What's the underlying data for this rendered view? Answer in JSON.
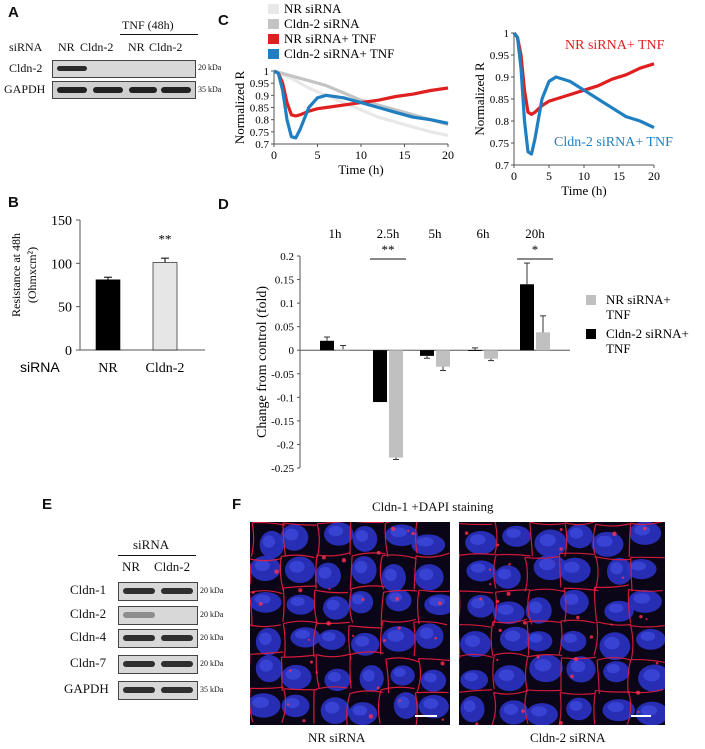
{
  "panels": {
    "A": {
      "label": "A",
      "treatment": "TNF (48h)",
      "row_label": "siRNA",
      "lanes": [
        "NR",
        "Cldn-2",
        "NR",
        "Cldn-2"
      ],
      "blots": [
        {
          "name": "Cldn-2",
          "kda": "20 kDa",
          "intensity": [
            0.9,
            0.05,
            0.0,
            0.0
          ]
        },
        {
          "name": "GAPDH",
          "kda": "35 kDa",
          "intensity": [
            0.9,
            0.85,
            0.9,
            0.9
          ]
        }
      ]
    },
    "B": {
      "label": "B",
      "row_label": "siRNA",
      "significance": "**"
    },
    "C": {
      "label": "C"
    },
    "D": {
      "label": "D"
    },
    "E": {
      "label": "E",
      "header": "siRNA",
      "lanes": [
        "NR",
        "Cldn-2"
      ],
      "blots": [
        {
          "name": "Cldn-1",
          "kda": "20 kDa",
          "intensity": [
            0.9,
            0.9
          ]
        },
        {
          "name": "Cldn-2",
          "kda": "20 kDa",
          "intensity": [
            0.35,
            0.0
          ]
        },
        {
          "name": "Cldn-4",
          "kda": "20 kDa",
          "intensity": [
            0.9,
            0.9
          ]
        },
        {
          "name": "Cldn-7",
          "kda": "20 kDa",
          "intensity": [
            0.9,
            0.9
          ]
        },
        {
          "name": "GAPDH",
          "kda": "35 kDa",
          "intensity": [
            0.9,
            0.9
          ]
        }
      ]
    },
    "F": {
      "label": "F",
      "title": "Cldn-1 +DAPI staining",
      "images": [
        {
          "caption": "NR siRNA"
        },
        {
          "caption": "Cldn-2 siRNA"
        }
      ]
    }
  },
  "chart_data": [
    {
      "id": "B",
      "type": "bar",
      "categories": [
        "NR",
        "Cldn-2"
      ],
      "values": [
        81,
        101
      ],
      "errors": [
        3,
        5
      ],
      "colors": [
        "#000000",
        "#e6e6e6"
      ],
      "ylabel": "Resistance at 48h (Ohmxcm²)",
      "ylabel_line1": "Resistance at 48h",
      "ylabel_line2": "(Ohmxcm²)",
      "ylim": [
        0,
        150
      ],
      "yticks": [
        "0",
        "50",
        "100",
        "150"
      ],
      "annotation": "**"
    },
    {
      "id": "C-left",
      "type": "line",
      "xlabel": "Time (h)",
      "ylabel": "Normalized R",
      "xlim": [
        0,
        20
      ],
      "ylim": [
        0.7,
        1
      ],
      "xticks": [
        "0",
        "5",
        "10",
        "15",
        "20"
      ],
      "yticks": [
        "0.7",
        "0.75",
        "0.8",
        "0.85",
        "0.9",
        "0.95",
        "1"
      ],
      "legend": "top-left",
      "series": [
        {
          "name": "NR siRNA",
          "color": "#e8e8e8",
          "x": [
            0,
            2,
            4,
            6,
            8,
            10,
            12,
            14,
            16,
            18,
            20
          ],
          "y": [
            1,
            0.97,
            0.93,
            0.9,
            0.87,
            0.84,
            0.81,
            0.79,
            0.77,
            0.75,
            0.735
          ]
        },
        {
          "name": "Cldn-2 siRNA",
          "color": "#c4c4c4",
          "x": [
            0,
            2,
            4,
            6,
            8,
            10,
            12,
            14,
            16,
            18,
            20
          ],
          "y": [
            1,
            0.98,
            0.96,
            0.94,
            0.91,
            0.88,
            0.86,
            0.84,
            0.82,
            0.8,
            0.78
          ]
        },
        {
          "name": "NR siRNA+ TNF",
          "color": "#e02020",
          "x": [
            0,
            0.5,
            1,
            1.5,
            2,
            2.5,
            3,
            4,
            5,
            6,
            8,
            10,
            12,
            14,
            16,
            18,
            20
          ],
          "y": [
            1,
            0.99,
            0.95,
            0.87,
            0.82,
            0.815,
            0.82,
            0.835,
            0.845,
            0.85,
            0.86,
            0.87,
            0.88,
            0.895,
            0.905,
            0.92,
            0.93
          ]
        },
        {
          "name": "Cldn-2 siRNA+ TNF",
          "color": "#1f7fc0",
          "x": [
            0,
            0.5,
            1,
            1.5,
            2,
            2.5,
            3,
            4,
            5,
            6,
            8,
            10,
            12,
            14,
            16,
            18,
            20
          ],
          "y": [
            1,
            0.99,
            0.92,
            0.8,
            0.73,
            0.725,
            0.76,
            0.85,
            0.89,
            0.9,
            0.89,
            0.87,
            0.85,
            0.83,
            0.81,
            0.8,
            0.785
          ]
        }
      ]
    },
    {
      "id": "C-right",
      "type": "line",
      "xlabel": "Time (h)",
      "ylabel": "Normalized R",
      "xlim": [
        0,
        20
      ],
      "ylim": [
        0.7,
        1
      ],
      "xticks": [
        "0",
        "5",
        "10",
        "15",
        "20"
      ],
      "yticks": [
        "0.7",
        "0.75",
        "0.8",
        "0.85",
        "0.9",
        "0.95",
        "1"
      ],
      "series": [
        {
          "name": "NR siRNA+ TNF",
          "color": "#e02020",
          "x": [
            0,
            0.5,
            1,
            1.5,
            2,
            2.5,
            3,
            4,
            5,
            6,
            8,
            10,
            12,
            14,
            16,
            18,
            20
          ],
          "y": [
            1,
            0.99,
            0.95,
            0.87,
            0.82,
            0.815,
            0.82,
            0.835,
            0.845,
            0.85,
            0.86,
            0.87,
            0.88,
            0.895,
            0.905,
            0.92,
            0.93
          ]
        },
        {
          "name": "Cldn-2 siRNA+ TNF",
          "color": "#1f7fc0",
          "x": [
            0,
            0.5,
            1,
            1.5,
            2,
            2.5,
            3,
            4,
            5,
            6,
            8,
            10,
            12,
            14,
            16,
            18,
            20
          ],
          "y": [
            1,
            0.99,
            0.92,
            0.8,
            0.73,
            0.725,
            0.76,
            0.85,
            0.89,
            0.9,
            0.89,
            0.87,
            0.85,
            0.83,
            0.81,
            0.8,
            0.785
          ]
        }
      ]
    },
    {
      "id": "D",
      "type": "bar",
      "categories": [
        "1h",
        "2.5h",
        "5h",
        "6h",
        "20h"
      ],
      "ylabel": "Change from control (fold)",
      "ylim": [
        -0.25,
        0.2
      ],
      "yticks": [
        "0.2",
        "0.15",
        "0.1",
        "0.05",
        "0",
        "-0.05",
        "-0.1",
        "-0.15",
        "-0.2",
        "-0.25"
      ],
      "legend": "right",
      "series": [
        {
          "name": "Cldn-2 siRNA+ TNF",
          "color": "#000000",
          "values": [
            0.02,
            -0.11,
            -0.012,
            0.0,
            0.14
          ],
          "errors": [
            0.008,
            0,
            0.005,
            0.005,
            0.045
          ]
        },
        {
          "name": "NR siRNA+ TNF",
          "color": "#c0c0c0",
          "values": [
            0.002,
            -0.228,
            -0.035,
            -0.018,
            0.038
          ],
          "errors": [
            0.008,
            0.004,
            0.008,
            0.004,
            0.035
          ]
        }
      ],
      "legend_entries": [
        {
          "line1": "NR siRNA+",
          "line2": "TNF",
          "color": "#c0c0c0"
        },
        {
          "line1": "Cldn-2 siRNA+",
          "line2": "TNF",
          "color": "#000000"
        }
      ],
      "annotations": [
        {
          "category": "2.5h",
          "text": "**"
        },
        {
          "category": "20h",
          "text": "*"
        }
      ]
    }
  ]
}
